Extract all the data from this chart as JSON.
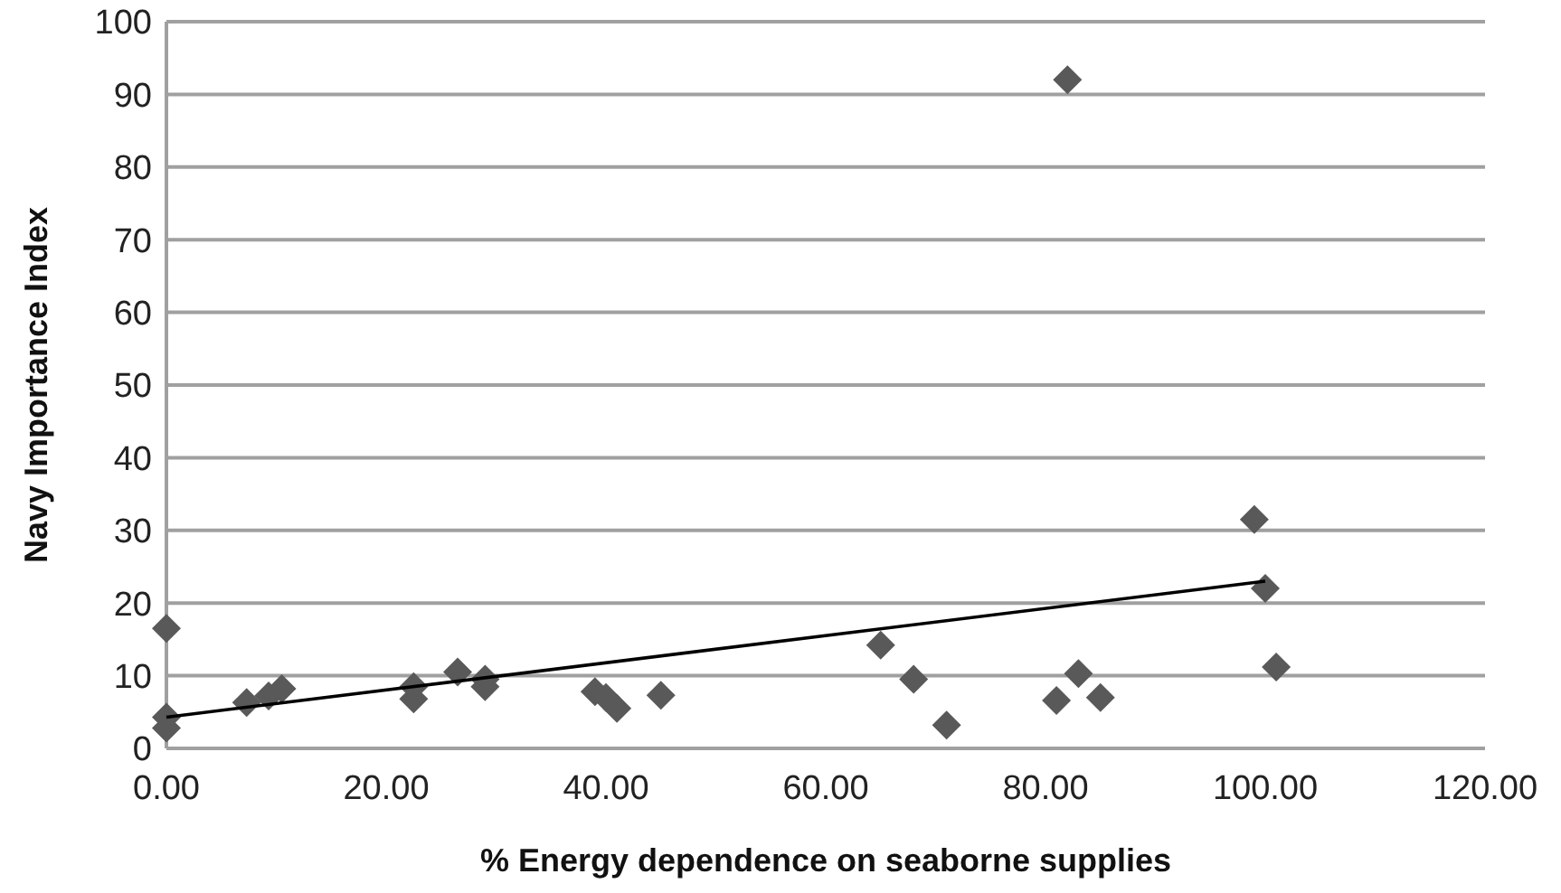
{
  "chart_data": {
    "type": "scatter",
    "xlabel": "% Energy dependence on seaborne supplies",
    "ylabel": "Navy Importance Index",
    "xlim": [
      0,
      120
    ],
    "ylim": [
      0,
      100
    ],
    "xticks": [
      {
        "value": 0,
        "label": "0.00"
      },
      {
        "value": 20,
        "label": "20.00"
      },
      {
        "value": 40,
        "label": "40.00"
      },
      {
        "value": 60,
        "label": "60.00"
      },
      {
        "value": 80,
        "label": "80.00"
      },
      {
        "value": 100,
        "label": "100.00"
      },
      {
        "value": 120,
        "label": "120.00"
      }
    ],
    "yticks": [
      0,
      10,
      20,
      30,
      40,
      50,
      60,
      70,
      80,
      90,
      100
    ],
    "grid": "y",
    "series": [
      {
        "color": "#595959",
        "marker": "diamond",
        "x": [
          0,
          0,
          0,
          7.3,
          9.3,
          10.5,
          22.5,
          22.5,
          26.5,
          29,
          29,
          39,
          40,
          41,
          45,
          65,
          68,
          71,
          81,
          82,
          83,
          85,
          99,
          100,
          101
        ],
        "values": [
          16.5,
          4.3,
          2.8,
          6.3,
          7.2,
          8.2,
          8.5,
          6.8,
          10.5,
          9.5,
          8.5,
          7.8,
          7,
          5.5,
          7.3,
          14.2,
          9.5,
          3.2,
          6.6,
          92,
          10.3,
          7,
          31.5,
          22,
          11.2
        ]
      },
      {
        "type": "line",
        "color": "#000000",
        "marker": "none",
        "x": [
          0,
          100
        ],
        "values": [
          4.3,
          23
        ]
      }
    ]
  }
}
